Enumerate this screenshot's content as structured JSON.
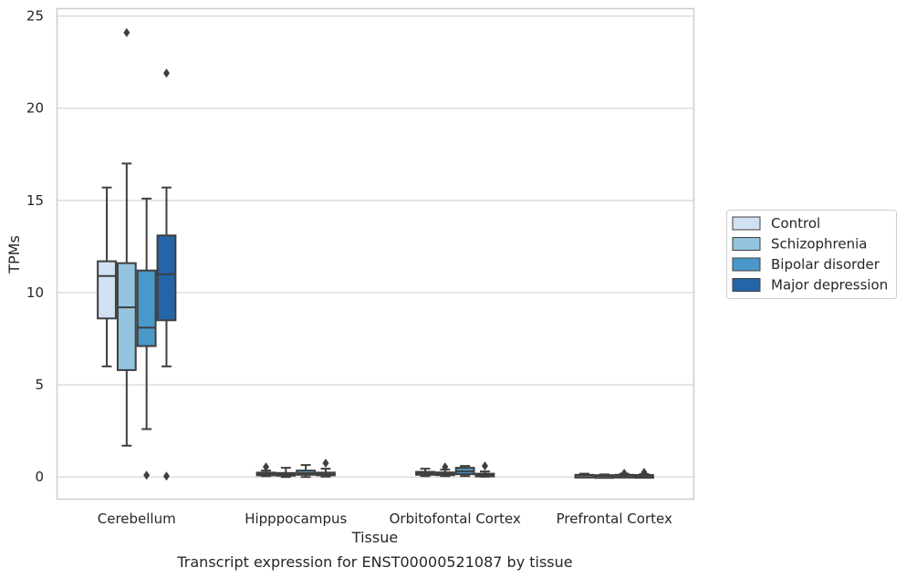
{
  "caption": "Transcript expression for ENST00000521087 by tissue",
  "chart_data": {
    "type": "boxplot",
    "xlabel": "Tissue",
    "ylabel": "TPMs",
    "ylim": [
      -1.2,
      25.4
    ],
    "yticks": [
      0,
      5,
      10,
      15,
      20,
      25
    ],
    "grid": true,
    "legend_position": "right",
    "categories": [
      "Cerebellum",
      "Hipppocampus",
      "Orbitofontal Cortex",
      "Prefrontal Cortex"
    ],
    "series": [
      {
        "name": "Control",
        "color": "#d0e1f2",
        "boxes": [
          {
            "whislo": 6.0,
            "q1": 8.6,
            "med": 10.9,
            "q3": 11.7,
            "whishi": 15.7,
            "fliers": []
          },
          {
            "whislo": 0.05,
            "q1": 0.12,
            "med": 0.18,
            "q3": 0.24,
            "whishi": 0.35,
            "fliers": [
              0.55
            ]
          },
          {
            "whislo": 0.05,
            "q1": 0.12,
            "med": 0.2,
            "q3": 0.28,
            "whishi": 0.45,
            "fliers": []
          },
          {
            "whislo": 0.02,
            "q1": 0.05,
            "med": 0.08,
            "q3": 0.12,
            "whishi": 0.18,
            "fliers": []
          }
        ]
      },
      {
        "name": "Schizophrenia",
        "color": "#94c4df",
        "boxes": [
          {
            "whislo": 1.7,
            "q1": 5.8,
            "med": 9.2,
            "q3": 11.6,
            "whishi": 17.0,
            "fliers": [
              24.1
            ]
          },
          {
            "whislo": 0.0,
            "q1": 0.08,
            "med": 0.14,
            "q3": 0.22,
            "whishi": 0.5,
            "fliers": []
          },
          {
            "whislo": 0.05,
            "q1": 0.1,
            "med": 0.17,
            "q3": 0.25,
            "whishi": 0.4,
            "fliers": [
              0.55
            ]
          },
          {
            "whislo": 0.02,
            "q1": 0.04,
            "med": 0.06,
            "q3": 0.1,
            "whishi": 0.14,
            "fliers": []
          }
        ]
      },
      {
        "name": "Bipolar disorder",
        "color": "#4a98c9",
        "boxes": [
          {
            "whislo": 2.6,
            "q1": 7.1,
            "med": 8.1,
            "q3": 11.2,
            "whishi": 15.1,
            "fliers": [
              0.1
            ]
          },
          {
            "whislo": 0.0,
            "q1": 0.12,
            "med": 0.2,
            "q3": 0.35,
            "whishi": 0.65,
            "fliers": []
          },
          {
            "whislo": 0.05,
            "q1": 0.15,
            "med": 0.3,
            "q3": 0.5,
            "whishi": 0.6,
            "fliers": []
          },
          {
            "whislo": 0.02,
            "q1": 0.05,
            "med": 0.08,
            "q3": 0.12,
            "whishi": 0.18,
            "fliers": [
              0.2
            ]
          }
        ]
      },
      {
        "name": "Major depression",
        "color": "#2464a8",
        "boxes": [
          {
            "whislo": 6.0,
            "q1": 8.5,
            "med": 11.0,
            "q3": 13.1,
            "whishi": 15.7,
            "fliers": [
              21.9,
              0.05
            ]
          },
          {
            "whislo": 0.02,
            "q1": 0.1,
            "med": 0.16,
            "q3": 0.24,
            "whishi": 0.45,
            "fliers": [
              0.75
            ]
          },
          {
            "whislo": 0.02,
            "q1": 0.05,
            "med": 0.1,
            "q3": 0.18,
            "whishi": 0.3,
            "fliers": [
              0.6
            ]
          },
          {
            "whislo": 0.02,
            "q1": 0.04,
            "med": 0.07,
            "q3": 0.11,
            "whishi": 0.16,
            "fliers": [
              0.25
            ]
          }
        ]
      }
    ]
  }
}
